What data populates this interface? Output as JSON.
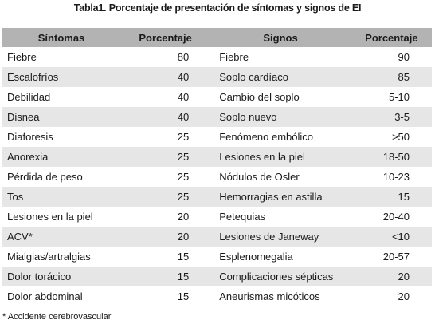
{
  "title": "Tabla1. Porcentaje de presentación de síntomas y signos de EI",
  "headers": [
    "Síntomas",
    "Porcentaje",
    "Signos",
    "Porcentaje"
  ],
  "rows": [
    [
      "Fiebre",
      "80",
      "Fiebre",
      "90"
    ],
    [
      "Escalofríos",
      "40",
      "Soplo cardíaco",
      "85"
    ],
    [
      "Debilidad",
      "40",
      "Cambio del soplo",
      "5-10"
    ],
    [
      "Disnea",
      "40",
      "Soplo nuevo",
      "3-5"
    ],
    [
      "Diaforesis",
      "25",
      "Fenómeno embólico",
      ">50"
    ],
    [
      "Anorexia",
      "25",
      "Lesiones en la piel",
      "18-50"
    ],
    [
      "Pérdida de peso",
      "25",
      "Nódulos de Osler",
      "10-23"
    ],
    [
      "Tos",
      "25",
      "Hemorragias en astilla",
      "15"
    ],
    [
      "Lesiones en la piel",
      "20",
      "Petequias",
      "20-40"
    ],
    [
      "ACV*",
      "20",
      "Lesiones de Janeway",
      "<10"
    ],
    [
      "Mialgias/artralgias",
      "15",
      "Esplenomegalia",
      "20-57"
    ],
    [
      "Dolor torácico",
      "15",
      "Complicaciones sépticas",
      "20"
    ],
    [
      "Dolor abdominal",
      "15",
      "Aneurismas micóticos",
      "20"
    ]
  ],
  "footnote": "*  Accidente cerebrovascular",
  "colors": {
    "header_bg": "#b3b3b3",
    "stripe_bg": "#e6e6e6"
  }
}
